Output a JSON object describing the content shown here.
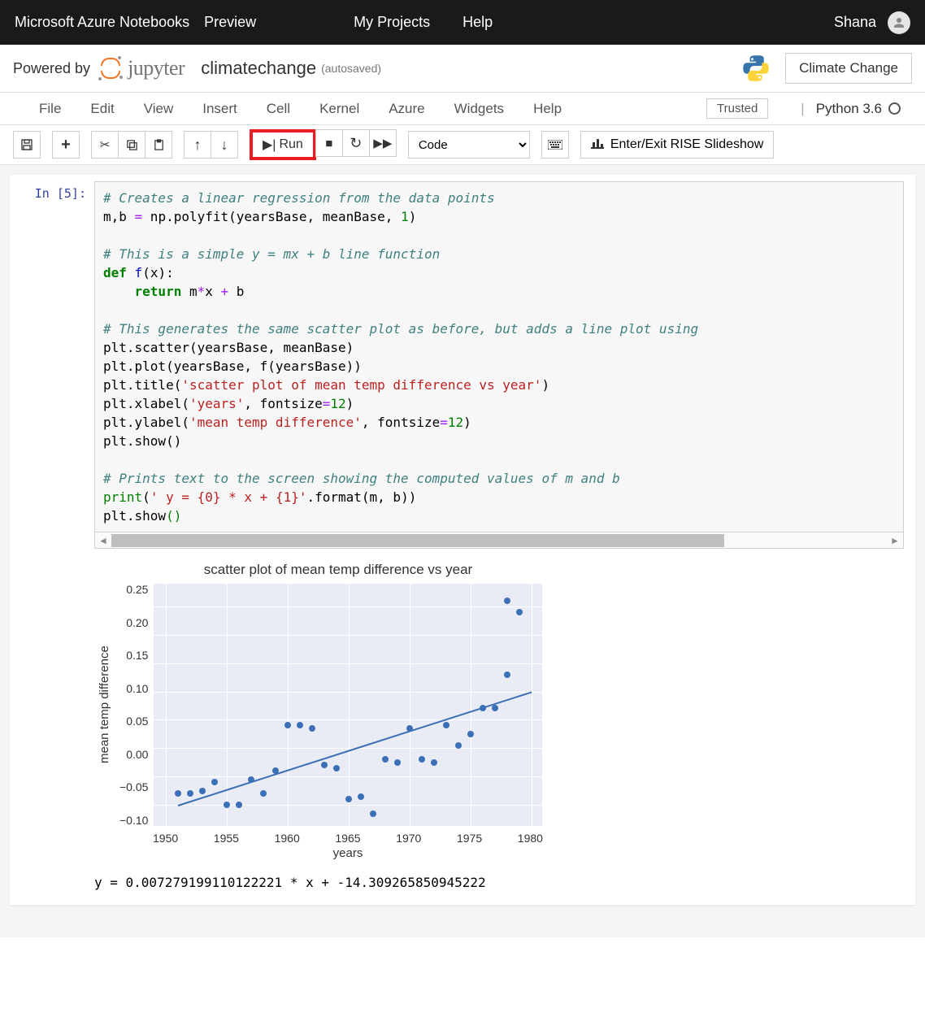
{
  "topbar": {
    "brand": "Microsoft Azure Notebooks",
    "preview": "Preview",
    "my_projects": "My Projects",
    "help": "Help",
    "user": "Shana"
  },
  "header": {
    "powered_by": "Powered by",
    "jupyter": "jupyter",
    "notebook_name": "climatechange",
    "autosaved": "(autosaved)",
    "right_button": "Climate Change"
  },
  "menubar": {
    "items": [
      "File",
      "Edit",
      "View",
      "Insert",
      "Cell",
      "Kernel",
      "Azure",
      "Widgets",
      "Help"
    ],
    "trusted": "Trusted",
    "kernel": "Python 3.6"
  },
  "toolbar": {
    "run_label": "Run",
    "celltype": "Code",
    "rise_label": "Enter/Exit RISE Slideshow"
  },
  "cell": {
    "prompt": "In [5]:",
    "code_lines": [
      {
        "t": "comment",
        "s": "# Creates a linear regression from the data points"
      },
      {
        "t": "plain",
        "s": "m,b = np.polyfit(yearsBase, meanBase, 1)"
      },
      {
        "t": "blank",
        "s": ""
      },
      {
        "t": "comment",
        "s": "# This is a simple y = mx + b line function"
      },
      {
        "t": "def",
        "s": "def f(x):"
      },
      {
        "t": "return",
        "s": "    return m*x + b"
      },
      {
        "t": "blank",
        "s": ""
      },
      {
        "t": "comment",
        "s": "# This generates the same scatter plot as before, but adds a line plot using"
      },
      {
        "t": "plain",
        "s": "plt.scatter(yearsBase, meanBase)"
      },
      {
        "t": "plain",
        "s": "plt.plot(yearsBase, f(yearsBase))"
      },
      {
        "t": "title",
        "s": "plt.title('scatter plot of mean temp difference vs year')"
      },
      {
        "t": "label",
        "s": "plt.xlabel('years', fontsize=12)"
      },
      {
        "t": "label2",
        "s": "plt.ylabel('mean temp difference', fontsize=12)"
      },
      {
        "t": "plain",
        "s": "plt.show()"
      },
      {
        "t": "blank",
        "s": ""
      },
      {
        "t": "comment",
        "s": "# Prints text to the screen showing the computed values of m and b"
      },
      {
        "t": "print",
        "s": "print(' y = {0} * x + {1}'.format(m, b))"
      },
      {
        "t": "show",
        "s": "plt.show()"
      }
    ]
  },
  "chart": {
    "title": "scatter plot of mean temp difference vs year",
    "xlabel": "years",
    "ylabel": "mean temp difference",
    "point_color": "#3b6fb6",
    "line_color": "#3b6fb6",
    "bg_color": "#e9ecf5",
    "grid_color": "#ffffff",
    "xlim": [
      1949,
      1981
    ],
    "ylim": [
      -0.14,
      0.29
    ],
    "xticks": [
      1950,
      1955,
      1960,
      1965,
      1970,
      1975,
      1980
    ],
    "yticks": [
      -0.1,
      -0.05,
      0.0,
      0.05,
      0.1,
      0.15,
      0.2,
      0.25
    ],
    "ytick_labels": [
      "−0.10",
      "−0.05",
      "0.00",
      "0.05",
      "0.10",
      "0.15",
      "0.20",
      "0.25"
    ],
    "points": [
      [
        1951,
        -0.08
      ],
      [
        1952,
        -0.08
      ],
      [
        1953,
        -0.075
      ],
      [
        1954,
        -0.06
      ],
      [
        1955,
        -0.1
      ],
      [
        1956,
        -0.1
      ],
      [
        1957,
        -0.055
      ],
      [
        1958,
        -0.08
      ],
      [
        1959,
        -0.04
      ],
      [
        1960,
        0.04
      ],
      [
        1961,
        0.04
      ],
      [
        1962,
        0.035
      ],
      [
        1963,
        -0.03
      ],
      [
        1964,
        -0.035
      ],
      [
        1965,
        -0.09
      ],
      [
        1966,
        -0.085
      ],
      [
        1967,
        -0.115
      ],
      [
        1968,
        -0.02
      ],
      [
        1969,
        -0.025
      ],
      [
        1970,
        0.035
      ],
      [
        1971,
        -0.02
      ],
      [
        1972,
        -0.025
      ],
      [
        1973,
        0.04
      ],
      [
        1974,
        0.005
      ],
      [
        1975,
        0.025
      ],
      [
        1976,
        0.07
      ],
      [
        1977,
        0.07
      ],
      [
        1978,
        0.13
      ],
      [
        1978,
        0.26
      ],
      [
        1979,
        0.24
      ]
    ],
    "line": {
      "x0": 1951,
      "y0": -0.1,
      "x1": 1980,
      "y1": 0.1
    }
  },
  "output_text": " y = 0.007279199110122221 * x + -14.309265850945222"
}
